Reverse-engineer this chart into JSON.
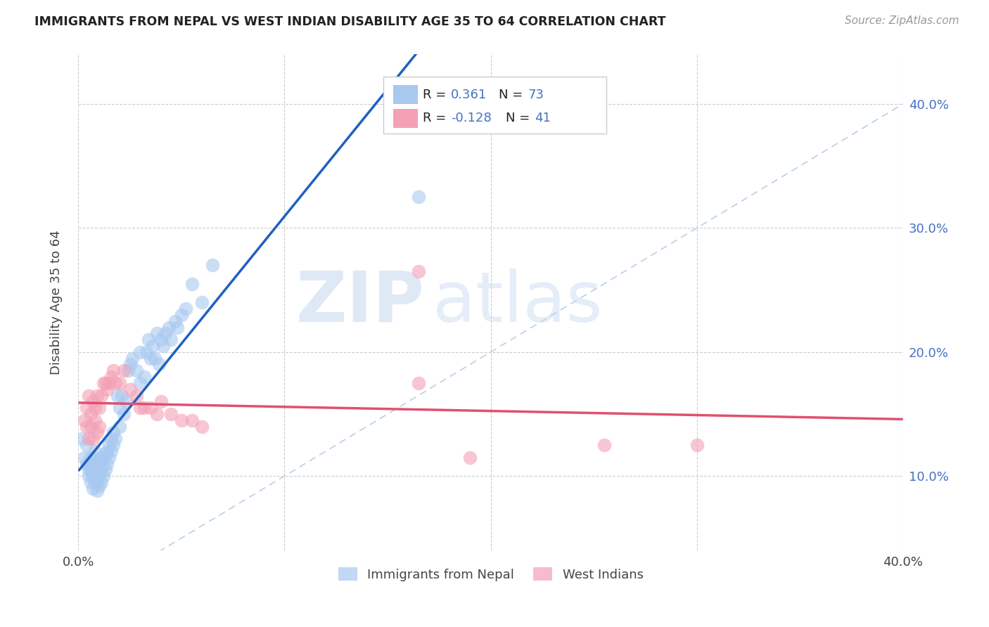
{
  "title": "IMMIGRANTS FROM NEPAL VS WEST INDIAN DISABILITY AGE 35 TO 64 CORRELATION CHART",
  "source": "Source: ZipAtlas.com",
  "ylabel": "Disability Age 35 to 64",
  "xlim": [
    0.0,
    0.4
  ],
  "ylim": [
    0.04,
    0.44
  ],
  "nepal_R": 0.361,
  "nepal_N": 73,
  "westindian_R": -0.128,
  "westindian_N": 41,
  "nepal_color": "#a8c8f0",
  "westindian_color": "#f4a0b5",
  "nepal_line_color": "#2060c0",
  "westindian_line_color": "#e05070",
  "diagonal_color": "#b8d0e8",
  "watermark_zip": "ZIP",
  "watermark_atlas": "atlas",
  "legend_label_nepal": "Immigrants from Nepal",
  "legend_label_west": "West Indians",
  "nepal_scatter_x": [
    0.002,
    0.003,
    0.004,
    0.004,
    0.005,
    0.005,
    0.005,
    0.006,
    0.006,
    0.006,
    0.007,
    0.007,
    0.007,
    0.007,
    0.008,
    0.008,
    0.008,
    0.008,
    0.009,
    0.009,
    0.009,
    0.01,
    0.01,
    0.01,
    0.011,
    0.011,
    0.011,
    0.012,
    0.012,
    0.013,
    0.013,
    0.014,
    0.014,
    0.015,
    0.015,
    0.016,
    0.016,
    0.017,
    0.017,
    0.018,
    0.019,
    0.02,
    0.02,
    0.021,
    0.022,
    0.023,
    0.024,
    0.025,
    0.026,
    0.028,
    0.03,
    0.03,
    0.032,
    0.033,
    0.034,
    0.035,
    0.036,
    0.037,
    0.038,
    0.039,
    0.04,
    0.041,
    0.042,
    0.044,
    0.045,
    0.047,
    0.048,
    0.05,
    0.052,
    0.055,
    0.06,
    0.065,
    0.165
  ],
  "nepal_scatter_y": [
    0.13,
    0.115,
    0.125,
    0.11,
    0.1,
    0.105,
    0.11,
    0.095,
    0.105,
    0.115,
    0.09,
    0.1,
    0.11,
    0.115,
    0.095,
    0.1,
    0.11,
    0.12,
    0.088,
    0.095,
    0.105,
    0.092,
    0.1,
    0.112,
    0.095,
    0.105,
    0.115,
    0.1,
    0.115,
    0.105,
    0.118,
    0.11,
    0.12,
    0.115,
    0.125,
    0.12,
    0.13,
    0.125,
    0.135,
    0.13,
    0.165,
    0.14,
    0.155,
    0.165,
    0.15,
    0.16,
    0.185,
    0.19,
    0.195,
    0.185,
    0.175,
    0.2,
    0.18,
    0.2,
    0.21,
    0.195,
    0.205,
    0.195,
    0.215,
    0.19,
    0.21,
    0.205,
    0.215,
    0.22,
    0.21,
    0.225,
    0.22,
    0.23,
    0.235,
    0.255,
    0.24,
    0.27,
    0.325
  ],
  "westindian_scatter_x": [
    0.003,
    0.004,
    0.004,
    0.005,
    0.005,
    0.006,
    0.006,
    0.007,
    0.007,
    0.008,
    0.008,
    0.009,
    0.009,
    0.01,
    0.01,
    0.011,
    0.012,
    0.013,
    0.014,
    0.015,
    0.016,
    0.017,
    0.018,
    0.02,
    0.022,
    0.025,
    0.028,
    0.03,
    0.032,
    0.035,
    0.038,
    0.04,
    0.045,
    0.05,
    0.055,
    0.06,
    0.165,
    0.19,
    0.255,
    0.3,
    0.165
  ],
  "westindian_scatter_y": [
    0.145,
    0.155,
    0.14,
    0.165,
    0.13,
    0.15,
    0.14,
    0.16,
    0.13,
    0.155,
    0.145,
    0.165,
    0.135,
    0.155,
    0.14,
    0.165,
    0.175,
    0.175,
    0.17,
    0.175,
    0.18,
    0.185,
    0.175,
    0.175,
    0.185,
    0.17,
    0.165,
    0.155,
    0.155,
    0.155,
    0.15,
    0.16,
    0.15,
    0.145,
    0.145,
    0.14,
    0.175,
    0.115,
    0.125,
    0.125,
    0.265
  ]
}
